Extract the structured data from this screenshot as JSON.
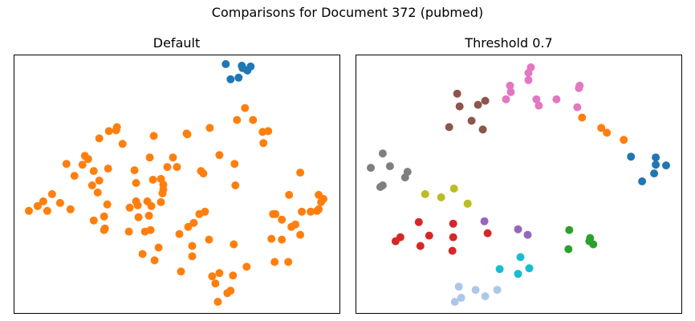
{
  "chart_data": {
    "title": "Comparisons for Document 372 (pubmed)",
    "panels": [
      {
        "type": "scatter",
        "title": "Default",
        "xlim": [
          0,
          406
        ],
        "ylim": [
          323,
          0
        ],
        "grid": false,
        "series": [
          {
            "color": "#ff7f0e",
            "points": [
              [
                254,
                14
              ],
              [
                266,
                25
              ],
              [
                270,
                28
              ],
              [
                251,
                37
              ],
              [
                247,
                46
              ],
              [
                273,
                47
              ],
              [
                208,
                52
              ],
              [
                256,
                50
              ],
              [
                290,
                58
              ],
              [
                325,
                64
              ],
              [
                342,
                64
              ],
              [
                222,
                71
              ],
              [
                175,
                66
              ],
              [
                160,
                74
              ],
              [
                180,
                82
              ],
              [
                274,
                86
              ],
              [
                243,
                92
              ],
              [
                206,
                99
              ],
              [
                222,
                84
              ],
              [
                321,
                93
              ],
              [
                334,
                92
              ],
              [
                357,
                98
              ],
              [
                112,
                104
              ],
              [
                143,
                102
              ],
              [
                163,
                102
              ],
              [
                170,
                104
              ],
              [
                217,
                108
              ],
              [
                224,
                113
              ],
              [
                231,
                124
              ],
              [
                238,
                127
              ],
              [
                351,
                111
              ],
              [
                346,
                108
              ],
              [
                334,
                117
              ],
              [
                326,
                124
              ],
              [
                323,
                124
              ],
              [
                359,
                127
              ],
              [
                370,
                127
              ],
              [
                378,
                128
              ],
              [
                380,
                130
              ],
              [
                386,
                143
              ],
              [
                380,
                148
              ],
              [
                383,
                139
              ],
              [
                343,
                148
              ],
              [
                99,
                116
              ],
              [
                113,
                106
              ],
              [
                112,
                121
              ],
              [
                116,
                136
              ],
              [
                155,
                120
              ],
              [
                168,
                122
              ],
              [
                171,
                134
              ],
              [
                18,
                128
              ],
              [
                29,
                134
              ],
              [
                36,
                140
              ],
              [
                41,
                128
              ],
              [
                47,
                149
              ],
              [
                57,
                138
              ],
              [
                70,
                130
              ],
              [
                144,
                132
              ],
              [
                154,
                135
              ],
              [
                166,
                140
              ],
              [
                152,
                140
              ],
              [
                183,
                139
              ],
              [
                185,
                150
              ],
              [
                186,
                161
              ],
              [
                186,
                155
              ],
              [
                173,
                167
              ],
              [
                183,
                168
              ],
              [
                104,
                151
              ],
              [
                97,
                160
              ],
              [
                106,
                166
              ],
              [
                117,
                181
              ],
              [
                75,
                172
              ],
              [
                85,
                186
              ],
              [
                65,
                187
              ],
              [
                99,
                178
              ],
              [
                152,
                163
              ],
              [
                150,
                179
              ],
              [
                276,
                160
              ],
              [
                233,
                178
              ],
              [
                236,
                175
              ],
              [
                256,
                198
              ],
              [
                203,
                183
              ],
              [
                191,
                183
              ],
              [
                198,
                195
              ],
              [
                169,
                195
              ],
              [
                92,
                193
              ],
              [
                88,
                197
              ],
              [
                275,
                187
              ],
              [
                357,
                176
              ],
              [
                106,
                219
              ],
              [
                118,
                228
              ],
              [
                127,
                229
              ],
              [
                135,
                212
              ],
              [
                128,
                233
              ],
              [
                174,
                222
              ],
              [
                215,
                225
              ],
              [
                244,
                232
              ],
              [
                216,
                224
              ],
              [
                311,
                213
              ],
              [
                317,
                228
              ],
              [
                310,
                227
              ],
              [
                278,
                242
              ],
              [
                298,
                242
              ],
              [
                288,
                257
              ]
            ]
          },
          {
            "color": "#1f77b4",
            "points": [
              [
                270,
                293
              ],
              [
                280,
                295
              ],
              [
                291,
                304
              ],
              [
                284,
                310
              ],
              [
                285,
                307
              ],
              [
                295,
                309
              ],
              [
                264,
                312
              ]
            ]
          }
        ]
      },
      {
        "type": "scatter",
        "title": "Threshold 0.7",
        "xlim": [
          0,
          406
        ],
        "ylim": [
          323,
          0
        ],
        "grid": false,
        "series": [
          {
            "color": "#aec7e8",
            "points": [
              [
                123,
                14
              ],
              [
                131,
                19
              ],
              [
                128,
                33
              ],
              [
                149,
                29
              ],
              [
                161,
                21
              ],
              [
                176,
                29
              ]
            ]
          },
          {
            "color": "#17becf",
            "points": [
              [
                179,
                55
              ],
              [
                202,
                49
              ],
              [
                216,
                56
              ],
              [
                205,
                70
              ]
            ]
          },
          {
            "color": "#d62728",
            "points": [
              [
                49,
                90
              ],
              [
                55,
                95
              ],
              [
                80,
                84
              ],
              [
                91,
                97
              ],
              [
                120,
                78
              ],
              [
                121,
                95
              ],
              [
                121,
                112
              ],
              [
                78,
                114
              ],
              [
                164,
                100
              ]
            ]
          },
          {
            "color": "#9467bd",
            "points": [
              [
                214,
                98
              ],
              [
                202,
                105
              ],
              [
                160,
                115
              ]
            ]
          },
          {
            "color": "#2ca02c",
            "points": [
              [
                265,
                80
              ],
              [
                296,
                86
              ],
              [
                291,
                90
              ],
              [
                292,
                94
              ],
              [
                266,
                104
              ]
            ]
          },
          {
            "color": "#bcbd22",
            "points": [
              [
                86,
                149
              ],
              [
                106,
                145
              ],
              [
                139,
                137
              ],
              [
                122,
                156
              ]
            ]
          },
          {
            "color": "#7f7f7f",
            "points": [
              [
                30,
                158
              ],
              [
                33,
                160
              ],
              [
                61,
                170
              ],
              [
                64,
                177
              ],
              [
                18,
                182
              ],
              [
                42,
                184
              ],
              [
                33,
                200
              ]
            ]
          },
          {
            "color": "#1f77b4",
            "points": [
              [
                357,
                165
              ],
              [
                372,
                175
              ],
              [
                387,
                185
              ],
              [
                374,
                186
              ],
              [
                374,
                195
              ],
              [
                343,
                196
              ]
            ]
          },
          {
            "color": "#ff7f0e",
            "points": [
              [
                334,
                217
              ],
              [
                313,
                226
              ],
              [
                306,
                232
              ],
              [
                282,
                245
              ]
            ]
          },
          {
            "color": "#8c564b",
            "points": [
              [
                116,
                233
              ],
              [
                158,
                230
              ],
              [
                144,
                241
              ],
              [
                129,
                259
              ],
              [
                152,
                261
              ],
              [
                161,
                266
              ],
              [
                126,
                275
              ]
            ]
          },
          {
            "color": "#e377c2",
            "points": [
              [
                228,
                260
              ],
              [
                225,
                268
              ],
              [
                250,
                268
              ],
              [
                276,
                258
              ],
              [
                278,
                282
              ],
              [
                279,
                285
              ],
              [
                192,
                285
              ],
              [
                193,
                277
              ],
              [
                187,
                268
              ],
              [
                215,
                292
              ],
              [
                215,
                301
              ],
              [
                218,
                308
              ]
            ]
          }
        ]
      }
    ]
  }
}
